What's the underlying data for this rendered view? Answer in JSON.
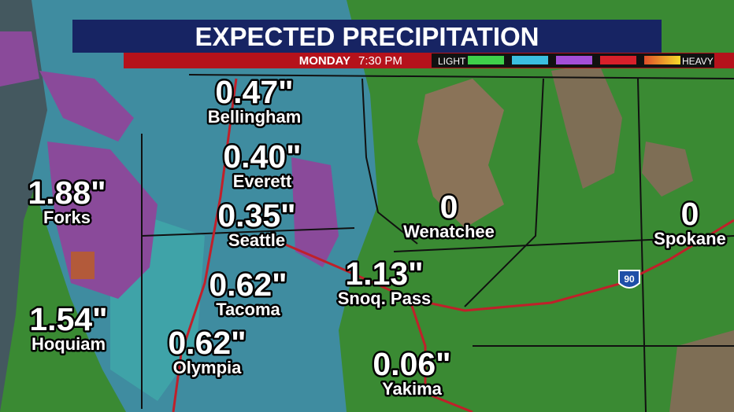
{
  "header": {
    "title": "EXPECTED PRECIPITATION",
    "day": "MONDAY",
    "time": "7:30 PM"
  },
  "legend": {
    "low_label": "LIGHT",
    "high_label": "HEAVY"
  },
  "highway_shield": "90",
  "locations": [
    {
      "name": "Bellingham",
      "amount": "0.47\""
    },
    {
      "name": "Everett",
      "amount": "0.40\""
    },
    {
      "name": "Seattle",
      "amount": "0.35\""
    },
    {
      "name": "Forks",
      "amount": "1.88\""
    },
    {
      "name": "Tacoma",
      "amount": "0.62\""
    },
    {
      "name": "Hoquiam",
      "amount": "1.54\""
    },
    {
      "name": "Olympia",
      "amount": "0.62\""
    },
    {
      "name": "Snoq. Pass",
      "amount": "1.13\""
    },
    {
      "name": "Wenatchee",
      "amount": "0"
    },
    {
      "name": "Spokane",
      "amount": "0"
    },
    {
      "name": "Yakima",
      "amount": "0.06\""
    }
  ]
}
